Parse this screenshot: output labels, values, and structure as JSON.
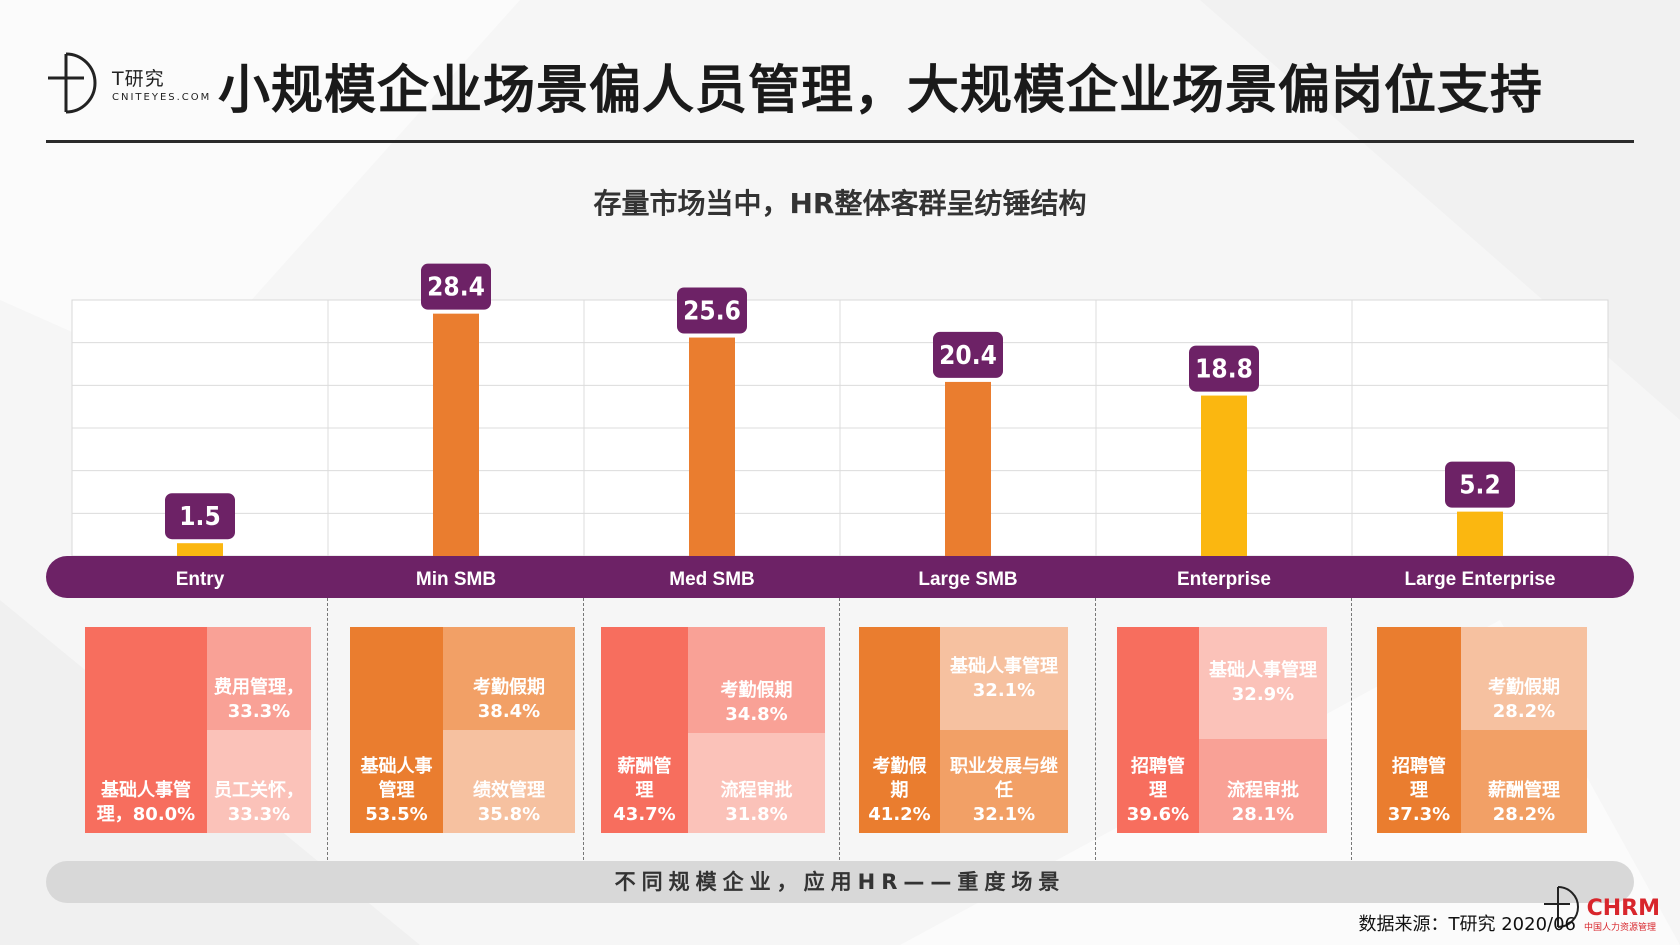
{
  "header": {
    "logo_main": "T研究",
    "logo_sub": "CNITEYES.COM",
    "title": "小规模企业场景偏人员管理，大规模企业场景偏岗位支持"
  },
  "chart_data": {
    "type": "bar",
    "title": "存量市场当中，HR整体客群呈纺锤结构",
    "categories": [
      "Entry",
      "Min SMB",
      "Med SMB",
      "Large SMB",
      "Enterprise",
      "Large Enterprise"
    ],
    "values": [
      1.5,
      28.4,
      25.6,
      20.4,
      18.8,
      5.2
    ],
    "data_labels": [
      "1.5",
      "28.4",
      "25.6",
      "20.4",
      "18.8",
      "5.2"
    ],
    "bar_colors": [
      "#fbb710",
      "#ea7d2f",
      "#ea7d2f",
      "#ea7d2f",
      "#fbb710",
      "#fbb710"
    ],
    "ylim": [
      0,
      30
    ],
    "grid": true,
    "label_color": "#6d2266"
  },
  "treemaps": [
    {
      "cells": [
        {
          "text": "基础人事管理，80.0%",
          "color": "#f76e5e"
        },
        {
          "text": "费用管理，33.3%",
          "color": "#f9a196"
        },
        {
          "text": "员工关怀，33.3%",
          "color": "#fbc2b9"
        }
      ]
    },
    {
      "cells": [
        {
          "name": "基础人事管理",
          "pct": "53.5%",
          "color": "#ea7d2f"
        },
        {
          "name": "考勤假期",
          "pct": "38.4%",
          "color": "#f2a066"
        },
        {
          "name": "绩效管理",
          "pct": "35.8%",
          "color": "#f6c1a0"
        }
      ]
    },
    {
      "cells": [
        {
          "name": "薪酬管理",
          "pct": "43.7%",
          "color": "#f76e5e"
        },
        {
          "name": "考勤假期",
          "pct": "34.8%",
          "color": "#f9a196"
        },
        {
          "name": "流程审批",
          "pct": "31.8%",
          "color": "#fbc2b9"
        }
      ]
    },
    {
      "cells": [
        {
          "name": "考勤假期",
          "pct": "41.2%",
          "color": "#ea7d2f"
        },
        {
          "name": "基础人事管理",
          "pct": "32.1%",
          "color": "#f6c1a0"
        },
        {
          "name": "职业发展与继任",
          "pct": "32.1%",
          "color": "#f2a066"
        }
      ]
    },
    {
      "cells": [
        {
          "name": "招聘管理",
          "pct": "39.6%",
          "color": "#f76e5e"
        },
        {
          "name": "基础人事管理",
          "pct": "32.9%",
          "color": "#fbc2b9"
        },
        {
          "name": "流程审批",
          "pct": "28.1%",
          "color": "#f9a196"
        }
      ]
    },
    {
      "cells": [
        {
          "name": "招聘管理",
          "pct": "37.3%",
          "color": "#ea7d2f"
        },
        {
          "name": "考勤假期",
          "pct": "28.2%",
          "color": "#f6c1a0"
        },
        {
          "name": "薪酬管理",
          "pct": "28.2%",
          "color": "#f2a066"
        }
      ]
    }
  ],
  "footer": {
    "band_text": "不同规模企业，应用HR——重度场景",
    "source": "数据来源：T研究 2020/06",
    "watermark": "CHRM",
    "watermark_sub": "中国人力资源管理"
  }
}
